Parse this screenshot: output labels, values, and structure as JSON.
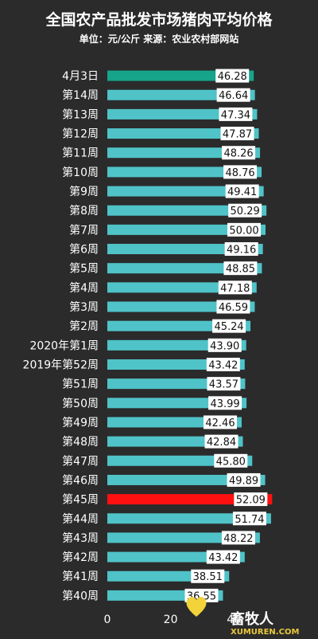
{
  "chart_data": {
    "type": "bar",
    "orientation": "horizontal",
    "title": "全国农产品批发市场猪肉平均价格",
    "subtitle": "单位：元/公斤 来源：农业农村部网站",
    "categories": [
      "4月3日",
      "第14周",
      "第13周",
      "第12周",
      "第11周",
      "第10周",
      "第9周",
      "第8周",
      "第7周",
      "第6周",
      "第5周",
      "第4周",
      "第3周",
      "第2周",
      "2020年第1周",
      "2019年第52周",
      "第51周",
      "第50周",
      "第49周",
      "第48周",
      "第47周",
      "第46周",
      "第45周",
      "第44周",
      "第43周",
      "第42周",
      "第41周",
      "第40周"
    ],
    "values": [
      46.28,
      46.64,
      47.34,
      47.87,
      48.26,
      48.76,
      49.41,
      50.29,
      50.0,
      49.16,
      48.85,
      47.18,
      46.59,
      45.24,
      43.9,
      43.42,
      43.57,
      43.99,
      42.46,
      42.84,
      45.8,
      49.89,
      52.09,
      51.74,
      48.22,
      43.42,
      38.51,
      36.55
    ],
    "value_labels": [
      "46.28",
      "46.64",
      "47.34",
      "47.87",
      "48.26",
      "48.76",
      "49.41",
      "50.29",
      "50.00",
      "49.16",
      "48.85",
      "47.18",
      "46.59",
      "45.24",
      "43.90",
      "43.42",
      "43.57",
      "43.99",
      "42.46",
      "42.84",
      "45.80",
      "49.89",
      "52.09",
      "51.74",
      "48.22",
      "43.42",
      "38.51",
      "36.55"
    ],
    "xlim": [
      0,
      60
    ],
    "x_ticks": [
      "0",
      "20",
      "40"
    ],
    "highlight": {
      "4月3日": "teal",
      "第45周": "red"
    },
    "colors": {
      "default": "#4fc3c8",
      "teal": "#16a58a",
      "red": "#ff1010",
      "background": "#2b2b2b"
    },
    "grid": false,
    "legend": "none"
  },
  "watermark": {
    "text": "畜牧人",
    "url": "XUMUREN.COM"
  }
}
